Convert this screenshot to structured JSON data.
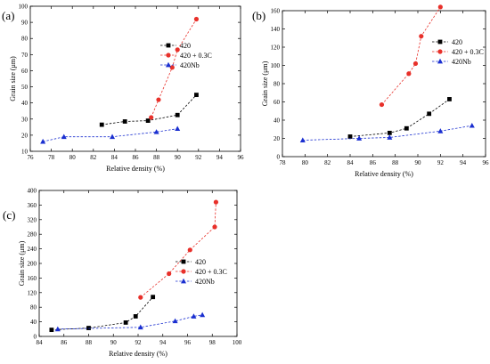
{
  "chart_data": [
    {
      "panel": "(a)",
      "type": "scatter",
      "xlabel": "Relative density (%)",
      "ylabel": "Grain size (μm)",
      "xlim": [
        76,
        96
      ],
      "ylim": [
        10,
        100
      ],
      "xticks": [
        76,
        78,
        80,
        82,
        84,
        86,
        88,
        90,
        92,
        94,
        96
      ],
      "yticks": [
        10,
        20,
        30,
        40,
        50,
        60,
        70,
        80,
        90,
        100
      ],
      "legend_position": "top-right",
      "series": [
        {
          "name": "420",
          "color": "#000000",
          "marker": "square",
          "x": [
            82.8,
            85.0,
            87.2,
            90.0,
            91.8
          ],
          "y": [
            26.5,
            28.5,
            29.0,
            32.5,
            45.0
          ]
        },
        {
          "name": "420 + 0.3C",
          "color": "#e8302a",
          "marker": "circle",
          "x": [
            87.5,
            88.2,
            89.5,
            90.0,
            91.8
          ],
          "y": [
            31.0,
            42.0,
            62.0,
            73.0,
            92.0
          ]
        },
        {
          "name": "420Nb",
          "color": "#1a2fd0",
          "marker": "triangle",
          "x": [
            77.2,
            79.2,
            83.8,
            88.0,
            90.0
          ],
          "y": [
            16.0,
            19.0,
            19.0,
            22.0,
            24.0
          ]
        }
      ]
    },
    {
      "panel": "(b)",
      "type": "scatter",
      "xlabel": "Relative density (%)",
      "ylabel": "Grain size (μm)",
      "xlim": [
        78,
        96
      ],
      "ylim": [
        0,
        160
      ],
      "xticks": [
        78,
        80,
        82,
        84,
        86,
        88,
        90,
        92,
        94,
        96
      ],
      "yticks": [
        0,
        20,
        40,
        60,
        80,
        100,
        120,
        140,
        160
      ],
      "legend_position": "top-right",
      "series": [
        {
          "name": "420",
          "color": "#000000",
          "marker": "square",
          "x": [
            84.0,
            87.5,
            89.0,
            91.0,
            92.8
          ],
          "y": [
            22.0,
            26.0,
            31.0,
            47.0,
            63.0
          ]
        },
        {
          "name": "420 + 0.3C",
          "color": "#e8302a",
          "marker": "circle",
          "x": [
            86.8,
            89.2,
            89.8,
            90.3,
            92.0
          ],
          "y": [
            57.0,
            91.0,
            102.0,
            132.0,
            164.0
          ]
        },
        {
          "name": "420Nb",
          "color": "#1a2fd0",
          "marker": "triangle",
          "x": [
            79.8,
            84.8,
            87.5,
            92.0,
            94.8
          ],
          "y": [
            18.0,
            20.0,
            21.0,
            28.0,
            34.0
          ]
        }
      ]
    },
    {
      "panel": "(c)",
      "type": "scatter",
      "xlabel": "Relative density (%)",
      "ylabel": "Grain size (μm)",
      "xlim": [
        84,
        100
      ],
      "ylim": [
        0,
        400
      ],
      "xticks": [
        84,
        86,
        88,
        90,
        92,
        94,
        96,
        98,
        100
      ],
      "yticks": [
        0,
        40,
        80,
        120,
        160,
        200,
        240,
        280,
        320,
        360,
        400
      ],
      "legend_position": "right",
      "series": [
        {
          "name": "420",
          "color": "#000000",
          "marker": "square",
          "x": [
            85.0,
            88.0,
            91.0,
            91.8,
            93.2
          ],
          "y": [
            18.0,
            23.0,
            38.0,
            55.0,
            108.0
          ]
        },
        {
          "name": "420 + 0.3C",
          "color": "#e8302a",
          "marker": "circle",
          "x": [
            92.2,
            94.5,
            96.2,
            98.2,
            98.3
          ],
          "y": [
            107.0,
            172.0,
            237.0,
            300.0,
            368.0
          ]
        },
        {
          "name": "420Nb",
          "color": "#1a2fd0",
          "marker": "triangle",
          "x": [
            85.5,
            92.2,
            95.0,
            96.5,
            97.2
          ],
          "y": [
            20.0,
            25.0,
            42.0,
            55.0,
            59.0
          ]
        }
      ]
    }
  ]
}
